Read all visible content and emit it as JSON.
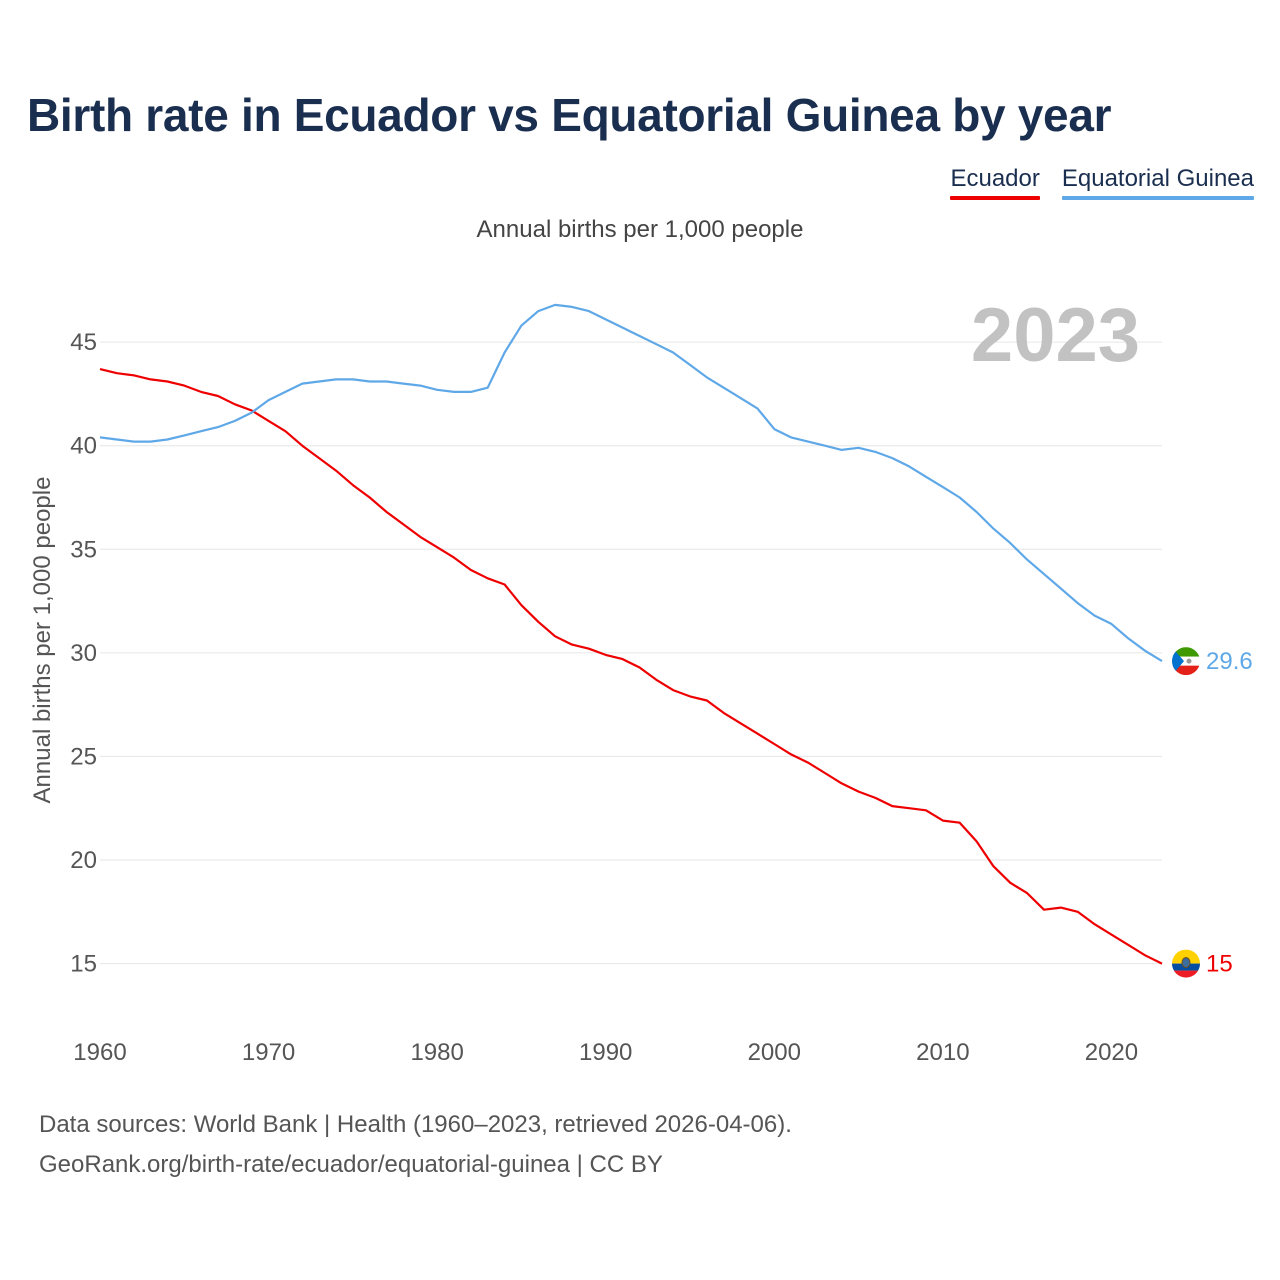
{
  "title": "Birth rate in Ecuador vs Equatorial Guinea by year",
  "subtitle": "Annual births per 1,000 people",
  "year_badge": "2023",
  "legend": [
    {
      "label": "Ecuador",
      "color": "#ee0000"
    },
    {
      "label": "Equatorial Guinea",
      "color": "#5fa8e8"
    }
  ],
  "footer": {
    "line1": "Data sources: World Bank | Health (1960–2023, retrieved 2026-04-06).",
    "line2": "GeoRank.org/birth-rate/ecuador/equatorial-guinea | CC BY"
  },
  "chart_data": {
    "type": "line",
    "title": "Birth rate in Ecuador vs Equatorial Guinea by year",
    "xlabel": "",
    "ylabel": "Annual births per 1,000 people",
    "xlim": [
      1960,
      2023
    ],
    "ylim": [
      13,
      48
    ],
    "xticks": [
      1960,
      1970,
      1980,
      1990,
      2000,
      2010,
      2020
    ],
    "yticks": [
      15,
      20,
      25,
      30,
      35,
      40,
      45
    ],
    "grid": true,
    "legend_position": "top-right",
    "x": [
      1960,
      1961,
      1962,
      1963,
      1964,
      1965,
      1966,
      1967,
      1968,
      1969,
      1970,
      1971,
      1972,
      1973,
      1974,
      1975,
      1976,
      1977,
      1978,
      1979,
      1980,
      1981,
      1982,
      1983,
      1984,
      1985,
      1986,
      1987,
      1988,
      1989,
      1990,
      1991,
      1992,
      1993,
      1994,
      1995,
      1996,
      1997,
      1998,
      1999,
      2000,
      2001,
      2002,
      2003,
      2004,
      2005,
      2006,
      2007,
      2008,
      2009,
      2010,
      2011,
      2012,
      2013,
      2014,
      2015,
      2016,
      2017,
      2018,
      2019,
      2020,
      2021,
      2022,
      2023
    ],
    "series": [
      {
        "name": "Ecuador",
        "color": "#ee0000",
        "end_label": "15",
        "values": [
          43.7,
          43.5,
          43.4,
          43.2,
          43.1,
          42.9,
          42.6,
          42.4,
          42.0,
          41.7,
          41.2,
          40.7,
          40.0,
          39.4,
          38.8,
          38.1,
          37.5,
          36.8,
          36.2,
          35.6,
          35.1,
          34.6,
          34.0,
          33.6,
          33.3,
          32.3,
          31.5,
          30.8,
          30.4,
          30.2,
          29.9,
          29.7,
          29.3,
          28.7,
          28.2,
          27.9,
          27.7,
          27.1,
          26.6,
          26.1,
          25.6,
          25.1,
          24.7,
          24.2,
          23.7,
          23.3,
          23.0,
          22.6,
          22.5,
          22.4,
          21.9,
          21.8,
          20.9,
          19.7,
          18.9,
          18.4,
          17.6,
          17.7,
          17.5,
          16.9,
          16.4,
          15.9,
          15.4,
          15.0
        ]
      },
      {
        "name": "Equatorial Guinea",
        "color": "#5fa8e8",
        "end_label": "29.6",
        "values": [
          40.4,
          40.3,
          40.2,
          40.2,
          40.3,
          40.5,
          40.7,
          40.9,
          41.2,
          41.6,
          42.2,
          42.6,
          43.0,
          43.1,
          43.2,
          43.2,
          43.1,
          43.1,
          43.0,
          42.9,
          42.7,
          42.6,
          42.6,
          42.8,
          44.5,
          45.8,
          46.5,
          46.8,
          46.7,
          46.5,
          46.1,
          45.7,
          45.3,
          44.9,
          44.5,
          43.9,
          43.3,
          42.8,
          42.3,
          41.8,
          40.8,
          40.4,
          40.2,
          40.0,
          39.8,
          39.9,
          39.7,
          39.4,
          39.0,
          38.5,
          38.0,
          37.5,
          36.8,
          36.0,
          35.3,
          34.5,
          33.8,
          33.1,
          32.4,
          31.8,
          31.4,
          30.7,
          30.1,
          29.6
        ]
      }
    ]
  }
}
